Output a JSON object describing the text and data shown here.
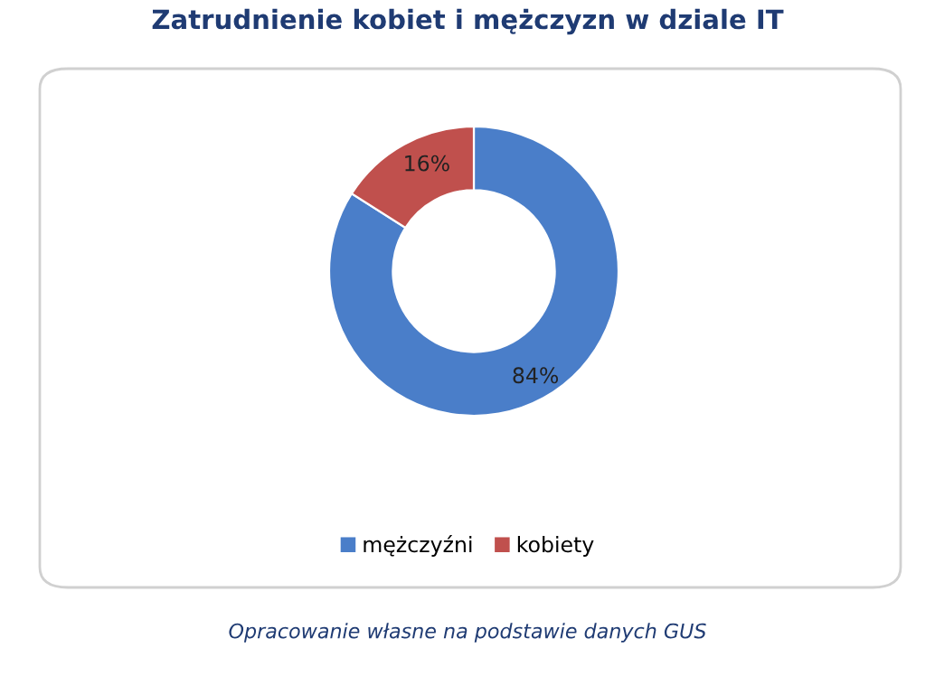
{
  "chart_data": {
    "type": "donut",
    "title": "Zatrudnienie kobiet i mężczyzn w dziale IT",
    "categories": [
      "mężczyźni",
      "kobiety"
    ],
    "values": [
      84,
      16
    ],
    "colors": [
      "#4a7ec9",
      "#c0504d"
    ],
    "value_labels": [
      "84%",
      "16%"
    ],
    "legend": "bottom",
    "annotations": [
      "Opracowanie własne na podstawie danych GUS"
    ]
  }
}
